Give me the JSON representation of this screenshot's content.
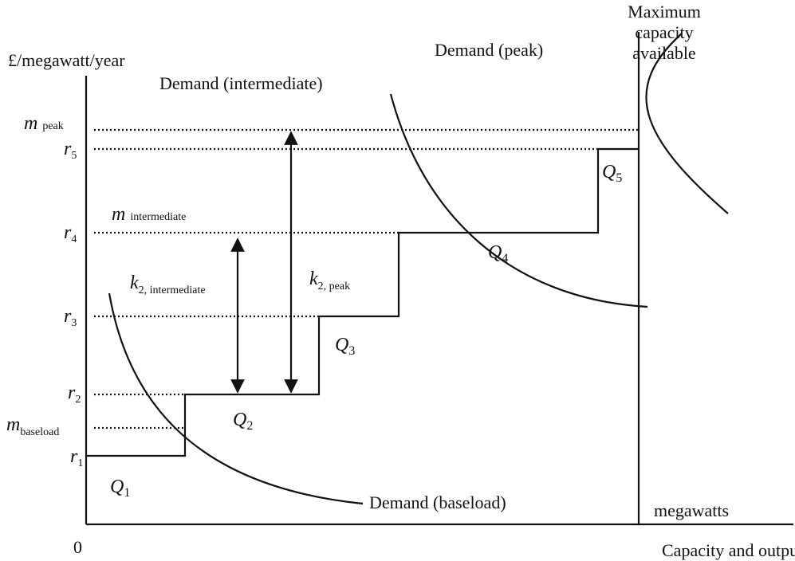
{
  "axes": {
    "y_label": "£/megawatt/year",
    "origin": "0",
    "x_unit": "megawatts",
    "x_label": "Capacity and output"
  },
  "curves": {
    "intermediate": "Demand (intermediate)",
    "peak": "Demand (peak)",
    "baseload": "Demand (baseload)"
  },
  "capacity": {
    "lines": [
      "Maximum",
      "capacity",
      "available"
    ]
  },
  "levels": {
    "m_peak": {
      "symbol": "m",
      "sub": "peak"
    },
    "r5": {
      "symbol": "r",
      "sub": "5"
    },
    "m_intermediate": {
      "symbol": "m",
      "sub": "intermediate"
    },
    "r4": {
      "symbol": "r",
      "sub": "4"
    },
    "r3": {
      "symbol": "r",
      "sub": "3"
    },
    "r2": {
      "symbol": "r",
      "sub": "2"
    },
    "m_baseload": {
      "symbol": "m",
      "sub": "baseload"
    },
    "r1": {
      "symbol": "r",
      "sub": "1"
    }
  },
  "gaps": {
    "k_intermediate": {
      "symbol": "k",
      "sub": "2, intermediate"
    },
    "k_peak": {
      "symbol": "k",
      "sub": "2, peak"
    }
  },
  "quantities": [
    {
      "symbol": "Q",
      "sub": "1"
    },
    {
      "symbol": "Q",
      "sub": "2"
    },
    {
      "symbol": "Q",
      "sub": "3"
    },
    {
      "symbol": "Q",
      "sub": "4"
    },
    {
      "symbol": "Q",
      "sub": "5"
    }
  ]
}
